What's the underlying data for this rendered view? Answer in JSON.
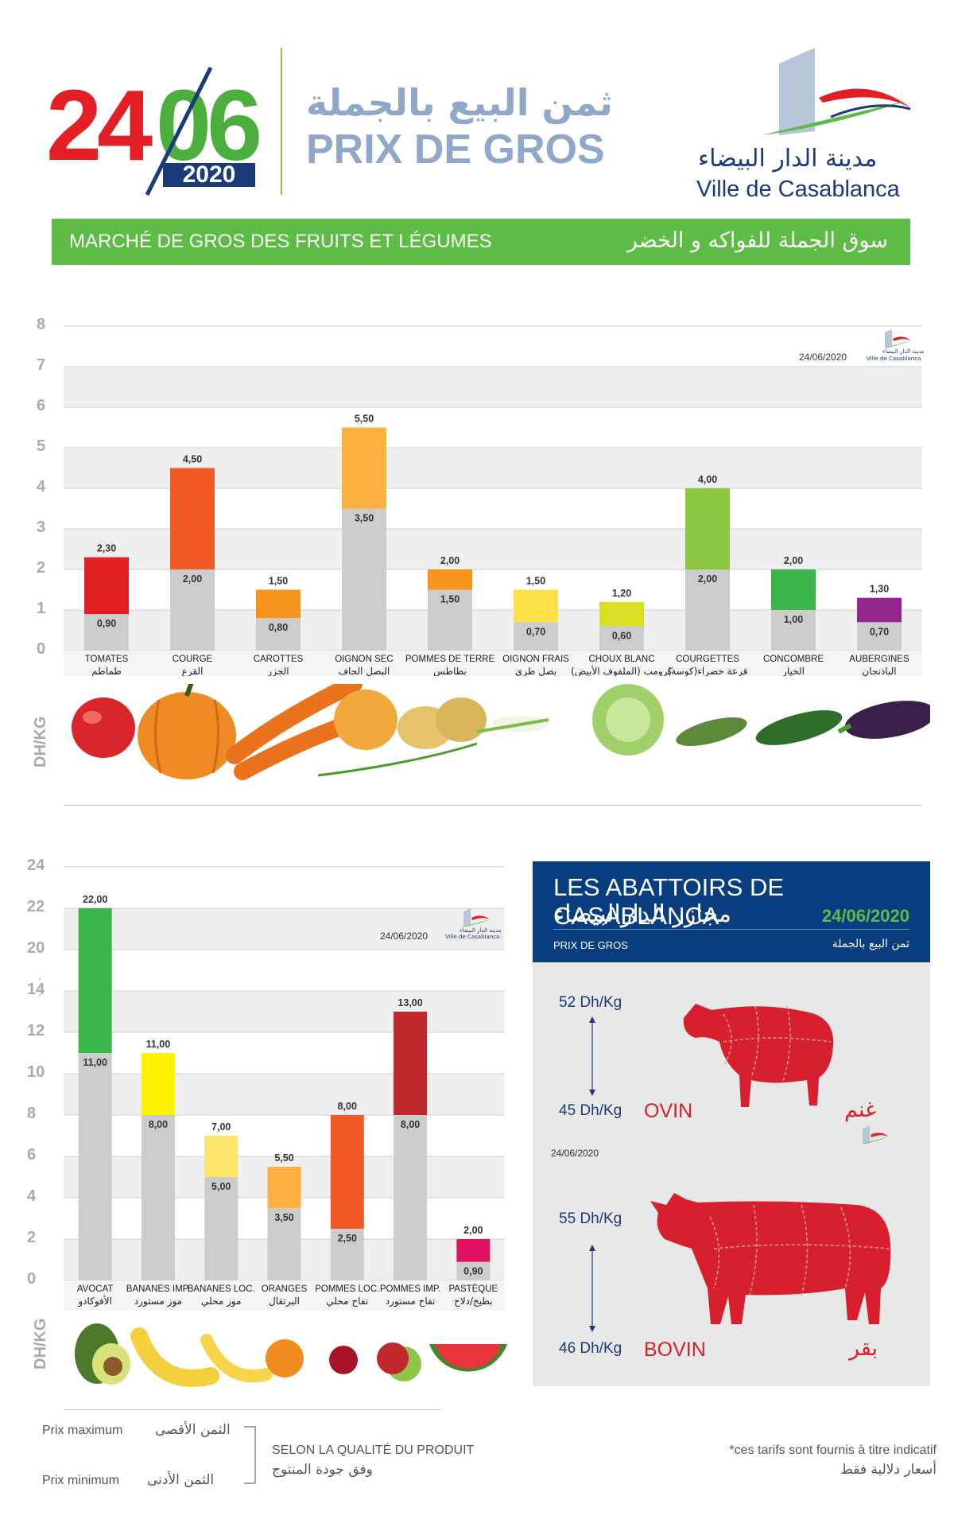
{
  "header": {
    "day": "24",
    "month": "06",
    "year": "2020",
    "title_ar": "ثمن البيع بالجملة",
    "title_fr": "PRIX DE GROS",
    "logo_ar": "مدينة الدار البيضاء",
    "logo_fr": "Ville de Casablanca",
    "colors": {
      "day": "#e31e24",
      "month": "#4cae3d",
      "year_bg": "#1a3a7a",
      "title": "#8fa7c8"
    }
  },
  "market": {
    "label_fr": "MARCHÉ DE GROS DES FRUITS ET LÉGUMES",
    "label_ar": "سوق الجملة للفواكه و الخضر",
    "color": "#5dbb46"
  },
  "chart_data": [
    {
      "type": "bar",
      "ylabel": "DH/KG",
      "date": "24/06/2020",
      "logo_ar": "مدينة الدار البيضاء",
      "logo_fr": "Ville de Casablanca",
      "ylim": [
        0,
        8
      ],
      "yticks": [
        "0",
        "1",
        "2",
        "3",
        "4",
        "5",
        "6",
        "7",
        "8"
      ],
      "categories": [
        {
          "fr": "TOMATES",
          "ar": "طماطم"
        },
        {
          "fr": "COURGE",
          "ar": "القرع"
        },
        {
          "fr": "CAROTTES",
          "ar": "الجزر"
        },
        {
          "fr": "OIGNON SEC",
          "ar": "البصل الجاف"
        },
        {
          "fr": "POMMES DE TERRE",
          "ar": "بطاطس"
        },
        {
          "fr": "OIGNON FRAIS",
          "ar": "بصل طري"
        },
        {
          "fr": "CHOUX BLANC",
          "ar": "كرومب (الملفوف الأبيض)"
        },
        {
          "fr": "COURGETTES",
          "ar": "قرعة خضراء(كوسة)"
        },
        {
          "fr": "CONCOMBRE",
          "ar": "الخيار"
        },
        {
          "fr": "AUBERGINES",
          "ar": "الباذنجان"
        }
      ],
      "series": [
        {
          "name": "Prix minimum",
          "values": [
            0.9,
            2.0,
            0.8,
            3.5,
            1.5,
            0.7,
            0.6,
            2.0,
            1.0,
            0.7
          ],
          "labels": [
            "0,90",
            "2,00",
            "0,80",
            "3,50",
            "1,50",
            "0,70",
            "0,60",
            "2,00",
            "1,00",
            "0,70"
          ]
        },
        {
          "name": "Prix maximum",
          "values": [
            2.3,
            4.5,
            1.5,
            5.5,
            2.0,
            1.5,
            1.2,
            4.0,
            2.0,
            1.3
          ],
          "labels": [
            "2,30",
            "4,50",
            "1,50",
            "5,50",
            "2,00",
            "1,50",
            "1,20",
            "4,00",
            "2,00",
            "1,30"
          ]
        }
      ],
      "colors": [
        "#e31e24",
        "#f15a24",
        "#f7941d",
        "#fbb040",
        "#f7941d",
        "#fde048",
        "#d7df23",
        "#8dc63f",
        "#39b54a",
        "#92278f"
      ]
    },
    {
      "type": "bar",
      "ylabel": "DH/KG",
      "date": "24/06/2020",
      "logo_ar": "مدينة الدار البيضاء",
      "logo_fr": "Ville de Casablanca",
      "broken_axis": true,
      "yticks": [
        "0",
        "2",
        "4",
        "6",
        "8",
        "10",
        "12",
        "14",
        "20",
        "22",
        "24"
      ],
      "categories": [
        {
          "fr": "AVOCAT",
          "ar": "الأفوكادو"
        },
        {
          "fr": "BANANES IMP.",
          "ar": "موز مستورد"
        },
        {
          "fr": "BANANES LOC.",
          "ar": "موز محلي"
        },
        {
          "fr": "ORANGES",
          "ar": "البرتقال"
        },
        {
          "fr": "POMMES LOC.",
          "ar": "تفاح محلي"
        },
        {
          "fr": "POMMES IMP.",
          "ar": "تفاح مستورد"
        },
        {
          "fr": "PASTÈQUE",
          "ar": "بطيخ/دلاح"
        }
      ],
      "series": [
        {
          "name": "Prix minimum",
          "values": [
            11.0,
            8.0,
            5.0,
            3.5,
            2.5,
            8.0,
            0.9
          ],
          "labels": [
            "11,00",
            "8,00",
            "5,00",
            "3,50",
            "2,50",
            "8,00",
            "0,90"
          ]
        },
        {
          "name": "Prix maximum",
          "values": [
            22.0,
            11.0,
            7.0,
            5.5,
            8.0,
            13.0,
            2.0
          ],
          "labels": [
            "22,00",
            "11,00",
            "7,00",
            "5,50",
            "8,00",
            "13,00",
            "2,00"
          ]
        }
      ],
      "colors": [
        "#39b54a",
        "#fff200",
        "#fde66c",
        "#fbb040",
        "#f15a24",
        "#c1272d",
        "#e0115f"
      ]
    }
  ],
  "abattoirs": {
    "title_fr": "LES ABATTOIRS DE CASABLANCA",
    "title_ar": "مجازر الدارالبيضاء",
    "date": "24/06/2020",
    "sub_fr": "PRIX DE GROS",
    "sub_ar": "ثمن البيع بالجملة",
    "ovin": {
      "max": "52 Dh/Kg",
      "min": "45 Dh/Kg",
      "name_fr": "OVIN",
      "name_ar": "غنم"
    },
    "mid_date": "24/06/2020",
    "bovin": {
      "max": "55 Dh/Kg",
      "min": "46 Dh/Kg",
      "name_fr": "BOVIN",
      "name_ar": "بقر"
    },
    "colors": {
      "header": "#083e80",
      "meat": "#d81f2d"
    }
  },
  "legend": {
    "max_fr": "Prix maximum",
    "max_ar": "الثمن الأقصى",
    "min_fr": "Prix minimum",
    "min_ar": "الثمن الأدنى",
    "quality_fr": "SELON LA QUALITÉ DU PRODUIT",
    "quality_ar": "وفق جودة المنتوج"
  },
  "disclaimer": {
    "fr": "*ces tarifs sont fournis à titre indicatif",
    "ar": "أسعار دلالية فقط"
  }
}
